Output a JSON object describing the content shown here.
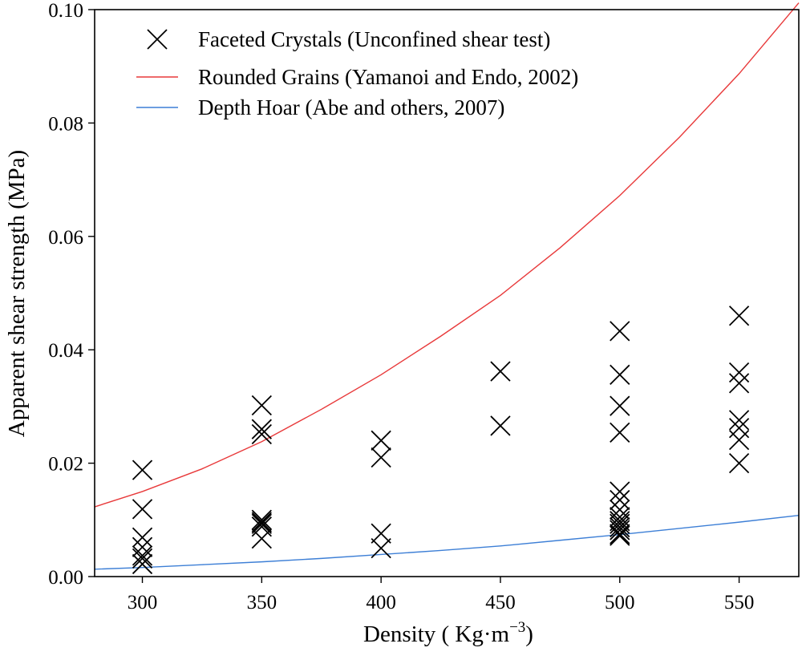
{
  "chart_data": {
    "type": "scatter",
    "xlabel": "Density ( Kg·m",
    "xlabel_sup": "−3",
    "xlabel_close": ")",
    "ylabel": "Apparent shear strength  (MPa)",
    "xlim": [
      280,
      575
    ],
    "ylim": [
      0,
      0.1
    ],
    "xticks": [
      300,
      350,
      400,
      450,
      500,
      550
    ],
    "xtick_labels": [
      "300",
      "350",
      "400",
      "450",
      "500",
      "550"
    ],
    "yticks": [
      0,
      0.02,
      0.04,
      0.06,
      0.08,
      0.1
    ],
    "ytick_labels": [
      "0.00",
      "0.02",
      "0.04",
      "0.06",
      "0.08",
      "0.10"
    ],
    "grid": false,
    "legend_position": "top-left",
    "series": [
      {
        "name": "Faceted Crystals (Unconfined shear test)",
        "kind": "scatter",
        "marker": "x",
        "color": "#000000",
        "points": [
          [
            300,
            0.0188
          ],
          [
            300,
            0.0119
          ],
          [
            300,
            0.0069
          ],
          [
            300,
            0.0052
          ],
          [
            300,
            0.0037
          ],
          [
            300,
            0.0032
          ],
          [
            300,
            0.0022
          ],
          [
            350,
            0.0302
          ],
          [
            350,
            0.026
          ],
          [
            350,
            0.0251
          ],
          [
            350,
            0.01
          ],
          [
            350,
            0.0096
          ],
          [
            350,
            0.0093
          ],
          [
            350,
            0.0088
          ],
          [
            350,
            0.0067
          ],
          [
            400,
            0.024
          ],
          [
            400,
            0.021
          ],
          [
            400,
            0.0076
          ],
          [
            400,
            0.005
          ],
          [
            450,
            0.0362
          ],
          [
            450,
            0.0266
          ],
          [
            500,
            0.0433
          ],
          [
            500,
            0.0356
          ],
          [
            500,
            0.0301
          ],
          [
            500,
            0.0254
          ],
          [
            500,
            0.015
          ],
          [
            500,
            0.0135
          ],
          [
            500,
            0.0118
          ],
          [
            500,
            0.0105
          ],
          [
            500,
            0.0098
          ],
          [
            500,
            0.0093
          ],
          [
            500,
            0.0087
          ],
          [
            500,
            0.0082
          ],
          [
            500,
            0.0075
          ],
          [
            500,
            0.0072
          ],
          [
            550,
            0.046
          ],
          [
            550,
            0.036
          ],
          [
            550,
            0.0341
          ],
          [
            550,
            0.0276
          ],
          [
            550,
            0.0262
          ],
          [
            550,
            0.0241
          ],
          [
            550,
            0.02
          ]
        ]
      },
      {
        "name": "Rounded Grains (Yamanoi and Endo, 2002)",
        "kind": "line",
        "color": "#e8393a",
        "points": [
          [
            280,
            0.0123
          ],
          [
            300,
            0.015
          ],
          [
            325,
            0.019
          ],
          [
            350,
            0.0238
          ],
          [
            375,
            0.0295
          ],
          [
            400,
            0.0356
          ],
          [
            425,
            0.0424
          ],
          [
            450,
            0.0496
          ],
          [
            475,
            0.058
          ],
          [
            500,
            0.0672
          ],
          [
            525,
            0.0775
          ],
          [
            550,
            0.0887
          ],
          [
            575,
            0.1012
          ]
        ]
      },
      {
        "name": "Depth Hoar (Abe and others, 2007)",
        "kind": "line",
        "color": "#3d7fd6",
        "points": [
          [
            280,
            0.0013
          ],
          [
            300,
            0.0016
          ],
          [
            325,
            0.0021
          ],
          [
            350,
            0.0026
          ],
          [
            375,
            0.0032
          ],
          [
            400,
            0.0039
          ],
          [
            425,
            0.0046
          ],
          [
            450,
            0.0054
          ],
          [
            475,
            0.0064
          ],
          [
            500,
            0.0074
          ],
          [
            525,
            0.0085
          ],
          [
            550,
            0.0096
          ],
          [
            575,
            0.0108
          ]
        ]
      }
    ]
  }
}
